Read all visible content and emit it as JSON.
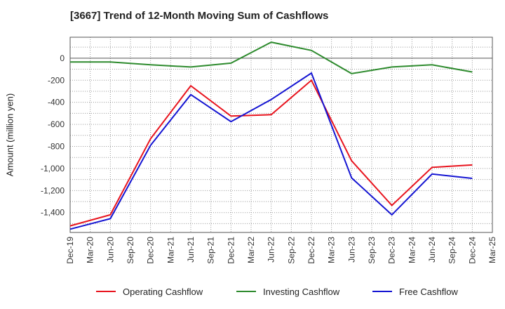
{
  "chart_data": {
    "type": "line",
    "title": "[3667]  Trend of 12-Month Moving Sum of Cashflows",
    "ylabel": "Amount (million yen)",
    "xlabel": "",
    "x": [
      "Dec-19",
      "Mar-20",
      "Jun-20",
      "Sep-20",
      "Dec-20",
      "Mar-21",
      "Jun-21",
      "Sep-21",
      "Dec-21",
      "Mar-22",
      "Jun-22",
      "Sep-22",
      "Dec-22",
      "Mar-23",
      "Jun-23",
      "Sep-23",
      "Dec-23",
      "Mar-24",
      "Jun-24",
      "Sep-24",
      "Dec-24",
      "Mar-25"
    ],
    "y_ticks": [
      0,
      -200,
      -400,
      -600,
      -800,
      -1000,
      -1200,
      -1400
    ],
    "y_tick_labels": [
      "0",
      "-200",
      "-400",
      "-600",
      "-800",
      "-1,000",
      "-1,200",
      "-1,400"
    ],
    "ylim": [
      -1580,
      190
    ],
    "grid": true,
    "legend_position": "bottom",
    "series": [
      {
        "name": "Operating Cashflow",
        "color": "#e8141e",
        "points": [
          [
            "Dec-19",
            -1520
          ],
          [
            "Jun-20",
            -1420
          ],
          [
            "Dec-20",
            -730
          ],
          [
            "Jun-21",
            -250
          ],
          [
            "Dec-21",
            -525
          ],
          [
            "Jun-22",
            -512
          ],
          [
            "Dec-22",
            -200
          ],
          [
            "Jun-23",
            -930
          ],
          [
            "Dec-23",
            -1335
          ],
          [
            "Jun-24",
            -990
          ],
          [
            "Dec-24",
            -968
          ]
        ]
      },
      {
        "name": "Investing Cashflow",
        "color": "#2e8b2e",
        "points": [
          [
            "Dec-19",
            -35
          ],
          [
            "Jun-20",
            -35
          ],
          [
            "Dec-20",
            -60
          ],
          [
            "Jun-21",
            -80
          ],
          [
            "Dec-21",
            -45
          ],
          [
            "Jun-22",
            145
          ],
          [
            "Dec-22",
            70
          ],
          [
            "Jun-23",
            -140
          ],
          [
            "Dec-23",
            -80
          ],
          [
            "Jun-24",
            -60
          ],
          [
            "Dec-24",
            -125
          ]
        ]
      },
      {
        "name": "Free Cashflow",
        "color": "#1414d2",
        "points": [
          [
            "Dec-19",
            -1550
          ],
          [
            "Jun-20",
            -1455
          ],
          [
            "Dec-20",
            -790
          ],
          [
            "Jun-21",
            -330
          ],
          [
            "Dec-21",
            -575
          ],
          [
            "Jun-22",
            -375
          ],
          [
            "Dec-22",
            -135
          ],
          [
            "Jun-23",
            -1085
          ],
          [
            "Dec-23",
            -1420
          ],
          [
            "Jun-24",
            -1050
          ],
          [
            "Dec-24",
            -1090
          ]
        ]
      }
    ]
  }
}
